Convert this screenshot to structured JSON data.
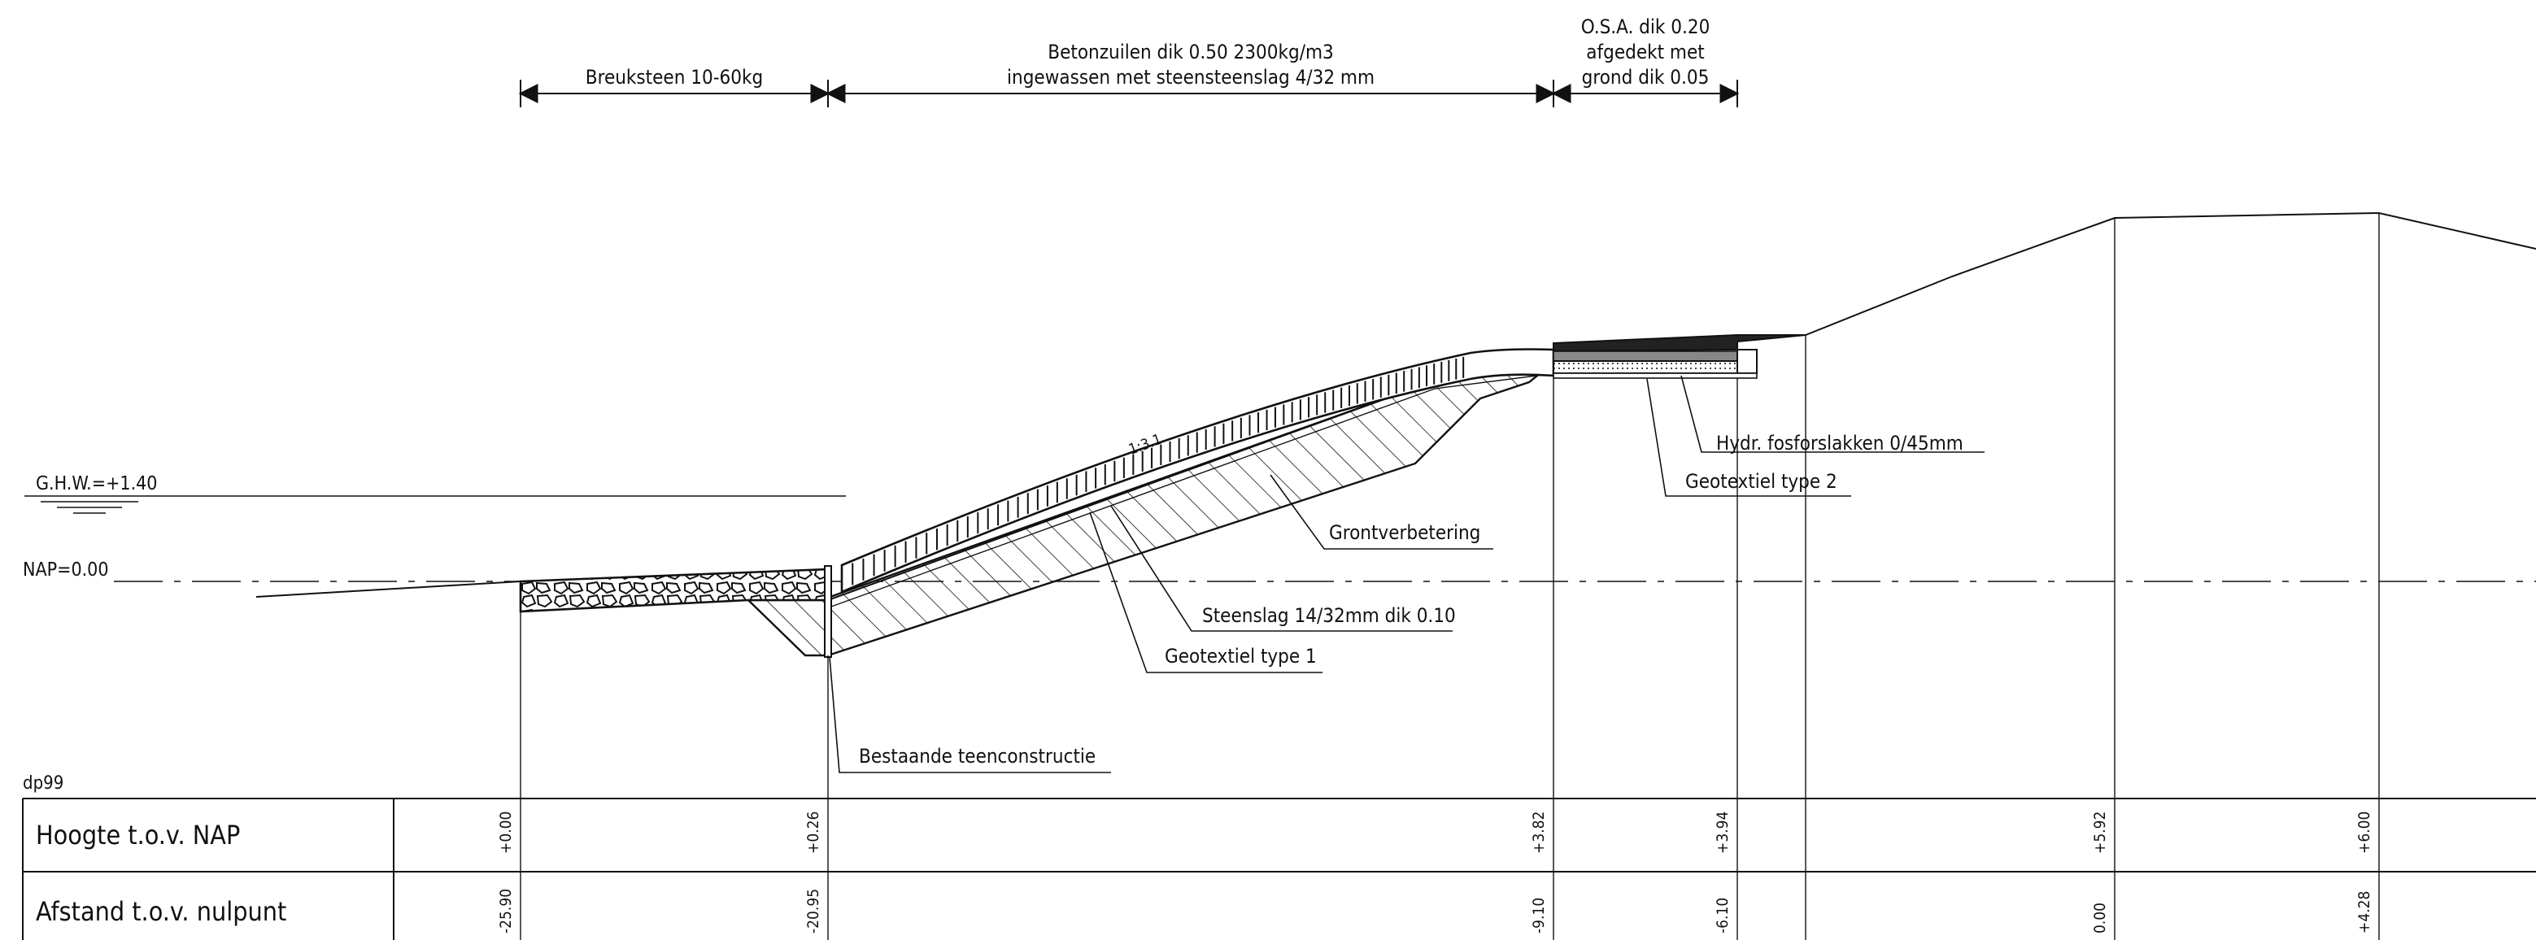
{
  "dimension_labels": {
    "breuksteen": "Breuksteen 10-60kg",
    "betonzuilen_line1": "Betonzuilen dik 0.50 2300kg/m3",
    "betonzuilen_line2": "ingewassen met steensteenslag 4/32 mm",
    "osa_line1": "O.S.A. dik 0.20",
    "osa_line2": "afgedekt met",
    "osa_line3": "grond dik 0.05"
  },
  "levels": {
    "ghw": "G.H.W.=+1.40",
    "nap": "NAP=0.00"
  },
  "slope_label": "1:3.1",
  "callouts": {
    "hydr": "Hydr. fosforslakken 0/45mm",
    "geotextiel2": "Geotextiel type 2",
    "grontverbetering": "Grontverbetering",
    "steenslag": "Steenslag 14/32mm dik 0.10",
    "geotextiel1": "Geotextiel type 1",
    "teenconstructie": "Bestaande teenconstructie"
  },
  "profile_id": "dp99",
  "table": {
    "row1_label": "Hoogte t.o.v. NAP",
    "row2_label": "Afstand t.o.v. nulpunt",
    "heights": [
      "+0.00",
      "+0.26",
      "+3.82",
      "+3.94",
      "+5.92",
      "+6.00"
    ],
    "distances": [
      "-25.90",
      "-20.95",
      "-9.10",
      "-6.10",
      "0.00",
      "+4.28"
    ]
  },
  "colors": {
    "line": "#111111",
    "background": "#ffffff"
  }
}
